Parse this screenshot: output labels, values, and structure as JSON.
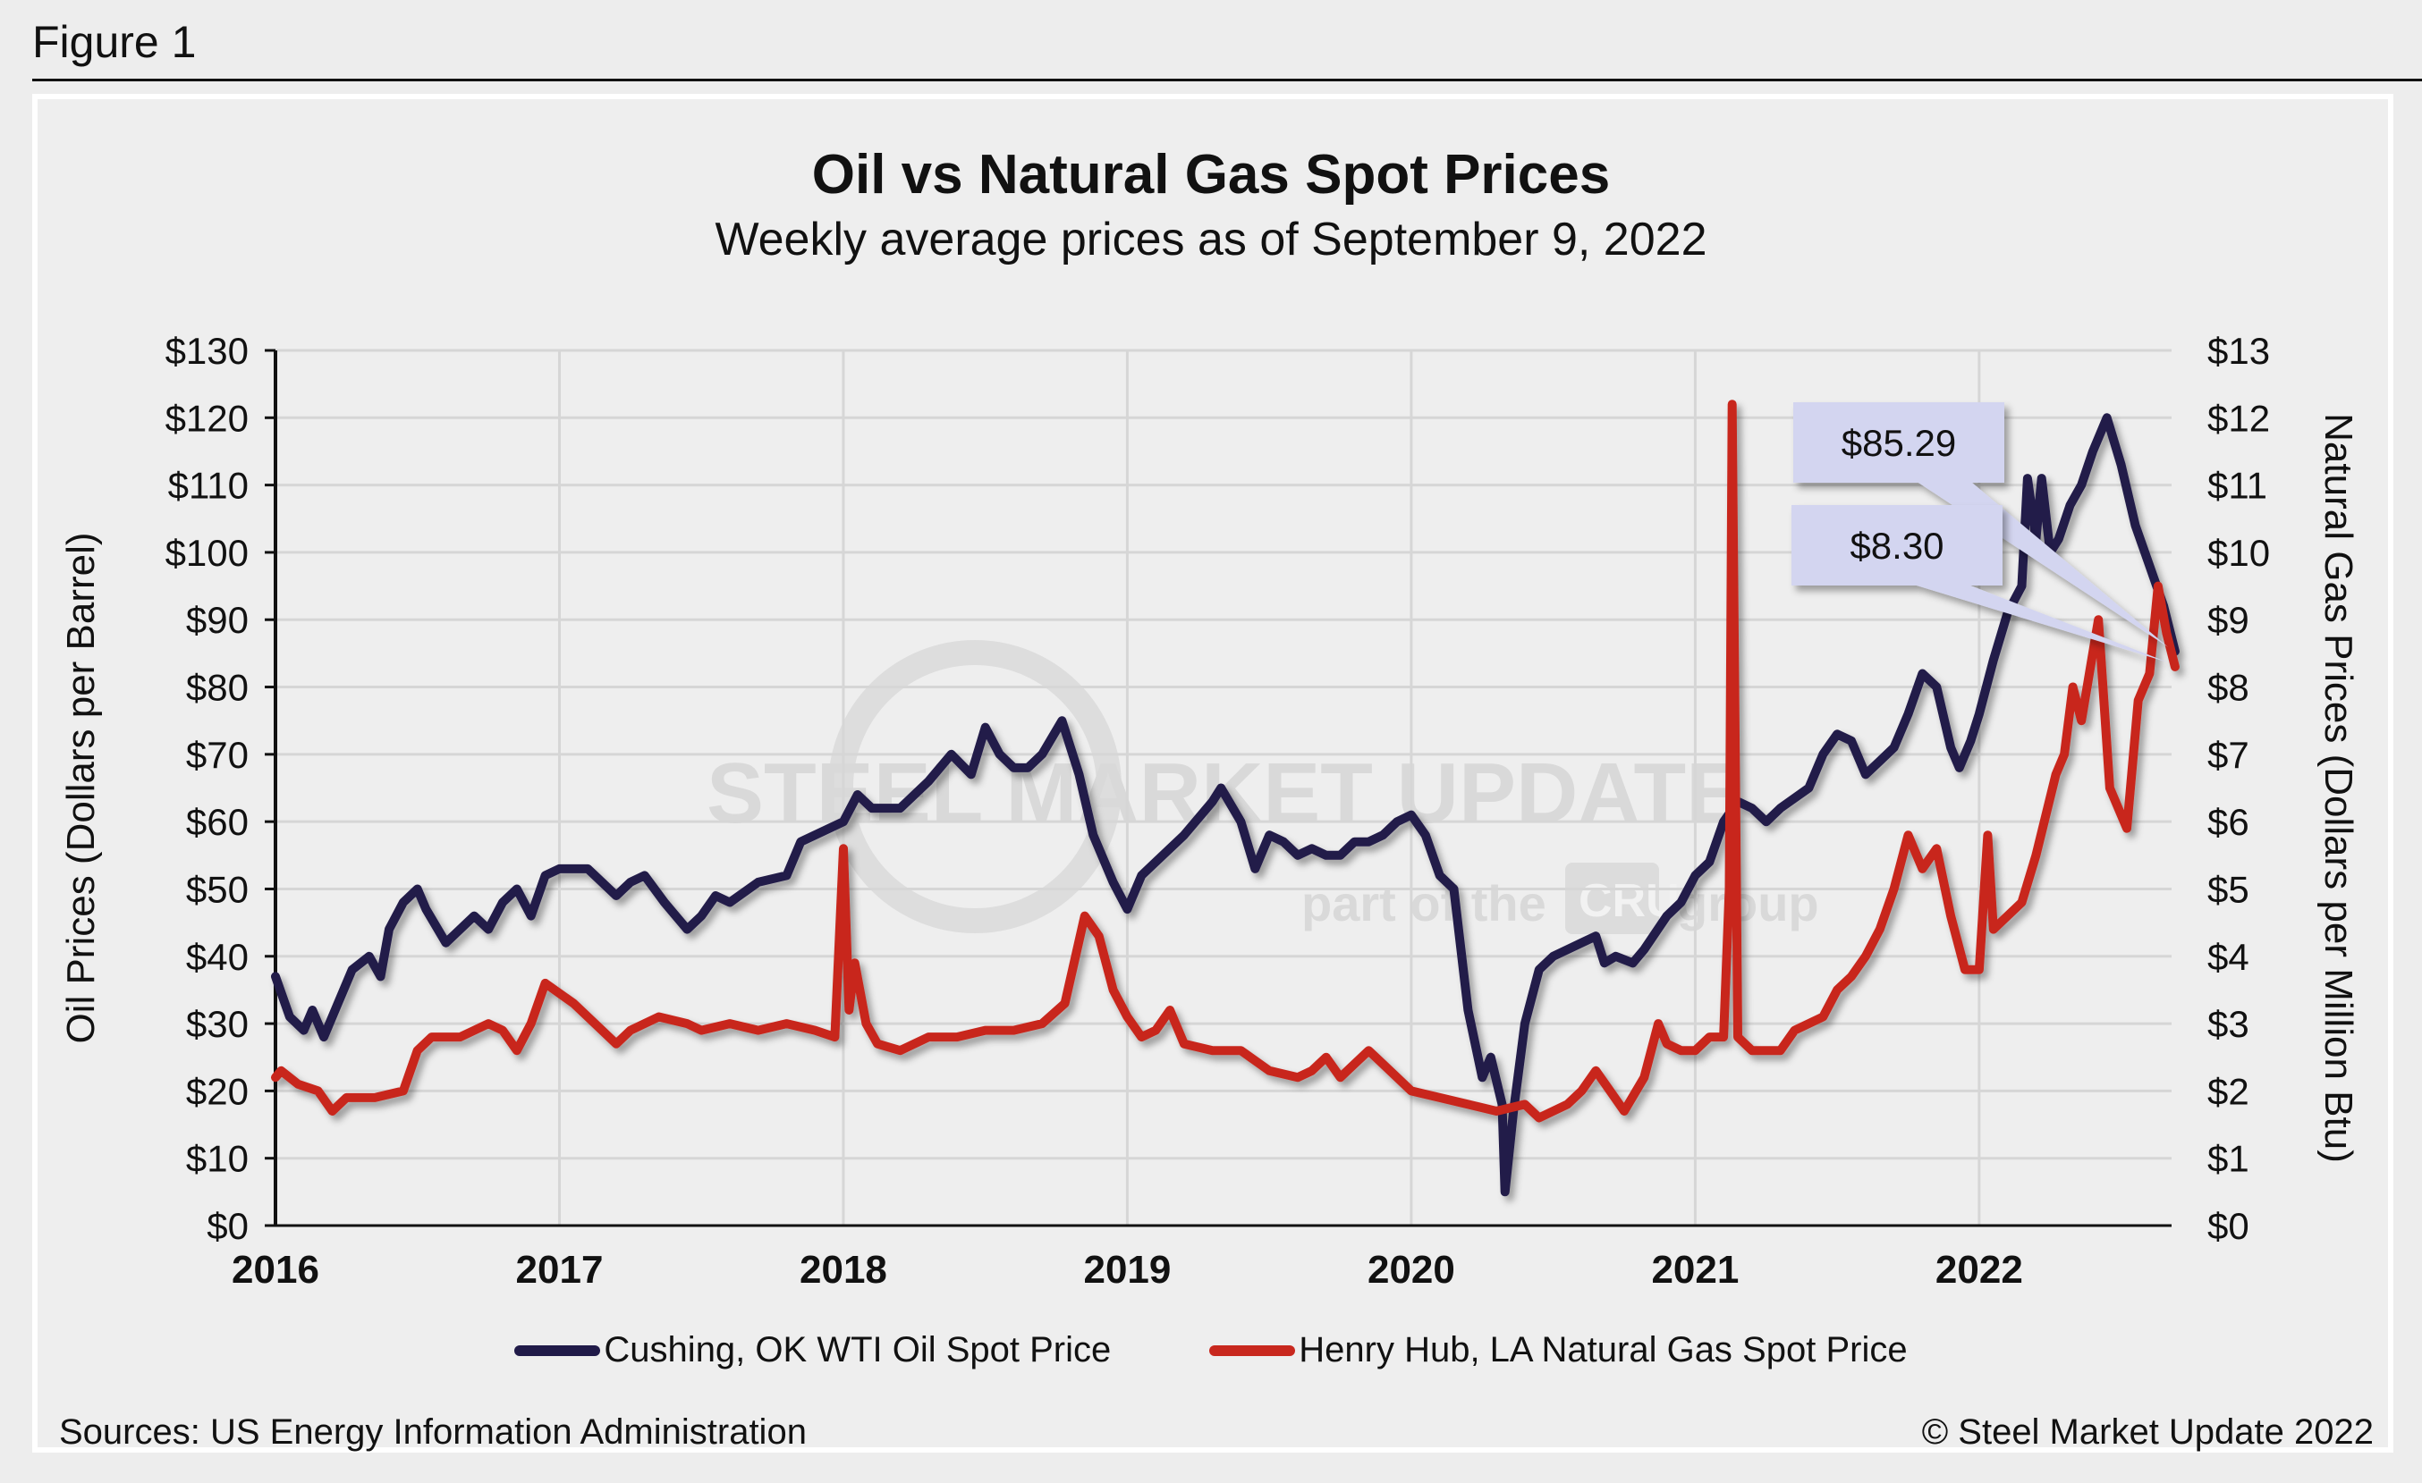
{
  "figure_label": "Figure 1",
  "chart_data": {
    "type": "line",
    "title": "Oil vs Natural Gas Spot Prices",
    "subtitle": "Weekly average prices as of September 9, 2022",
    "xlabel": "",
    "ylabel": "Oil Prices (Dollars per Barrel)",
    "y2label": "Natural Gas Prices (Dollars per Million Btu)",
    "xlim": [
      2016,
      2022.69
    ],
    "ylim": [
      0,
      130
    ],
    "y2lim": [
      0,
      13
    ],
    "grid": true,
    "x_ticks": [
      "2016",
      "2017",
      "2018",
      "2019",
      "2020",
      "2021",
      "2022"
    ],
    "y_ticks": [
      "$0",
      "$10",
      "$20",
      "$30",
      "$40",
      "$50",
      "$60",
      "$70",
      "$80",
      "$90",
      "$100",
      "$110",
      "$120",
      "$130"
    ],
    "y2_ticks": [
      "$0",
      "$1",
      "$2",
      "$3",
      "$4",
      "$5",
      "$6",
      "$7",
      "$8",
      "$9",
      "$10",
      "$11",
      "$12",
      "$13"
    ],
    "legend_position": "bottom",
    "series": [
      {
        "name": "Cushing, OK WTI Oil Spot Price",
        "axis": "left",
        "color": "#201a48",
        "x": [
          2016.0,
          2016.05,
          2016.1,
          2016.13,
          2016.17,
          2016.22,
          2016.27,
          2016.33,
          2016.37,
          2016.4,
          2016.45,
          2016.5,
          2016.53,
          2016.6,
          2016.65,
          2016.7,
          2016.75,
          2016.8,
          2016.85,
          2016.9,
          2016.95,
          2017.0,
          2017.1,
          2017.2,
          2017.25,
          2017.3,
          2017.37,
          2017.45,
          2017.5,
          2017.55,
          2017.6,
          2017.7,
          2017.8,
          2017.85,
          2017.9,
          2018.0,
          2018.05,
          2018.1,
          2018.2,
          2018.3,
          2018.38,
          2018.45,
          2018.5,
          2018.55,
          2018.6,
          2018.65,
          2018.7,
          2018.77,
          2018.83,
          2018.88,
          2018.95,
          2019.0,
          2019.05,
          2019.1,
          2019.2,
          2019.3,
          2019.33,
          2019.4,
          2019.45,
          2019.5,
          2019.55,
          2019.6,
          2019.65,
          2019.7,
          2019.75,
          2019.8,
          2019.85,
          2019.9,
          2019.95,
          2020.0,
          2020.05,
          2020.1,
          2020.15,
          2020.2,
          2020.25,
          2020.28,
          2020.32,
          2020.33,
          2020.36,
          2020.4,
          2020.45,
          2020.5,
          2020.55,
          2020.6,
          2020.65,
          2020.68,
          2020.72,
          2020.78,
          2020.82,
          2020.9,
          2020.95,
          2021.0,
          2021.05,
          2021.1,
          2021.15,
          2021.2,
          2021.25,
          2021.3,
          2021.4,
          2021.45,
          2021.5,
          2021.55,
          2021.6,
          2021.65,
          2021.7,
          2021.75,
          2021.8,
          2021.85,
          2021.9,
          2021.93,
          2021.97,
          2022.0,
          2022.05,
          2022.1,
          2022.15,
          2022.17,
          2022.2,
          2022.22,
          2022.25,
          2022.28,
          2022.32,
          2022.36,
          2022.4,
          2022.45,
          2022.5,
          2022.55,
          2022.6,
          2022.65,
          2022.69
        ],
        "values": [
          37,
          31,
          29,
          32,
          28,
          33,
          38,
          40,
          37,
          44,
          48,
          50,
          47,
          42,
          44,
          46,
          44,
          48,
          50,
          46,
          52,
          53,
          53,
          49,
          51,
          52,
          48,
          44,
          46,
          49,
          48,
          51,
          52,
          57,
          58,
          60,
          64,
          62,
          62,
          66,
          70,
          67,
          74,
          70,
          68,
          68,
          70,
          75,
          67,
          58,
          51,
          47,
          52,
          54,
          58,
          63,
          65,
          60,
          53,
          58,
          57,
          55,
          56,
          55,
          55,
          57,
          57,
          58,
          60,
          61,
          58,
          52,
          50,
          32,
          22,
          25,
          18,
          5,
          17,
          30,
          38,
          40,
          41,
          42,
          43,
          39,
          40,
          39,
          41,
          46,
          48,
          52,
          54,
          60,
          63,
          62,
          60,
          62,
          65,
          70,
          73,
          72,
          67,
          69,
          71,
          76,
          82,
          80,
          71,
          68,
          72,
          76,
          84,
          91,
          95,
          111,
          102,
          111,
          100,
          102,
          107,
          110,
          115,
          120,
          113,
          104,
          98,
          92,
          85.29
        ]
      },
      {
        "name": "Henry Hub, LA Natural Gas Spot Price",
        "axis": "right",
        "color": "#c8281e",
        "x": [
          2016.0,
          2016.02,
          2016.08,
          2016.15,
          2016.2,
          2016.25,
          2016.35,
          2016.45,
          2016.5,
          2016.55,
          2016.65,
          2016.75,
          2016.8,
          2016.85,
          2016.9,
          2016.95,
          2017.05,
          2017.1,
          2017.2,
          2017.25,
          2017.35,
          2017.45,
          2017.5,
          2017.6,
          2017.7,
          2017.8,
          2017.9,
          2017.97,
          2018.0,
          2018.02,
          2018.04,
          2018.08,
          2018.12,
          2018.2,
          2018.3,
          2018.4,
          2018.5,
          2018.6,
          2018.7,
          2018.78,
          2018.85,
          2018.9,
          2018.95,
          2019.0,
          2019.05,
          2019.1,
          2019.15,
          2019.2,
          2019.3,
          2019.4,
          2019.5,
          2019.6,
          2019.65,
          2019.7,
          2019.75,
          2019.85,
          2019.9,
          2019.95,
          2020.0,
          2020.1,
          2020.2,
          2020.3,
          2020.4,
          2020.45,
          2020.55,
          2020.6,
          2020.65,
          2020.7,
          2020.75,
          2020.82,
          2020.87,
          2020.9,
          2020.95,
          2021.0,
          2021.05,
          2021.1,
          2021.12,
          2021.13,
          2021.15,
          2021.2,
          2021.3,
          2021.35,
          2021.45,
          2021.5,
          2021.55,
          2021.6,
          2021.65,
          2021.7,
          2021.75,
          2021.8,
          2021.85,
          2021.9,
          2021.95,
          2022.0,
          2022.03,
          2022.05,
          2022.1,
          2022.15,
          2022.2,
          2022.27,
          2022.3,
          2022.33,
          2022.36,
          2022.42,
          2022.46,
          2022.52,
          2022.56,
          2022.6,
          2022.63,
          2022.66,
          2022.69
        ],
        "values": [
          2.2,
          2.3,
          2.1,
          2.0,
          1.7,
          1.9,
          1.9,
          2.0,
          2.6,
          2.8,
          2.8,
          3.0,
          2.9,
          2.6,
          3.0,
          3.6,
          3.3,
          3.1,
          2.7,
          2.9,
          3.1,
          3.0,
          2.9,
          3.0,
          2.9,
          3.0,
          2.9,
          2.8,
          5.6,
          3.2,
          3.9,
          3.0,
          2.7,
          2.6,
          2.8,
          2.8,
          2.9,
          2.9,
          3.0,
          3.3,
          4.6,
          4.3,
          3.5,
          3.1,
          2.8,
          2.9,
          3.2,
          2.7,
          2.6,
          2.6,
          2.3,
          2.2,
          2.3,
          2.5,
          2.2,
          2.6,
          2.4,
          2.2,
          2.0,
          1.9,
          1.8,
          1.7,
          1.8,
          1.6,
          1.8,
          2.0,
          2.3,
          2.0,
          1.7,
          2.2,
          3.0,
          2.7,
          2.6,
          2.6,
          2.8,
          2.8,
          5.0,
          12.2,
          2.8,
          2.6,
          2.6,
          2.9,
          3.1,
          3.5,
          3.7,
          4.0,
          4.4,
          5.0,
          5.8,
          5.3,
          5.6,
          4.6,
          3.8,
          3.8,
          5.8,
          4.4,
          4.6,
          4.8,
          5.5,
          6.7,
          7.0,
          8.0,
          7.5,
          9.0,
          6.5,
          5.9,
          7.8,
          8.2,
          9.5,
          8.8,
          8.3
        ]
      }
    ],
    "annotations": [
      {
        "text": "$85.29",
        "series": "Cushing, OK WTI Oil Spot Price",
        "x": 2022.69,
        "y": 85.29,
        "fill": "#d3d5f0"
      },
      {
        "text": "$8.30",
        "series": "Henry Hub, LA Natural Gas Spot Price",
        "x": 2022.69,
        "y": 8.3,
        "fill": "#d3d5f0"
      }
    ],
    "watermark": {
      "main": "STEEL MARKET UPDATE",
      "sub_left": "part of the",
      "sub_badge": "CRU",
      "sub_right": "group"
    }
  },
  "footer": {
    "source": "Sources: US Energy Information Administration",
    "copyright": "© Steel Market Update 2022"
  }
}
